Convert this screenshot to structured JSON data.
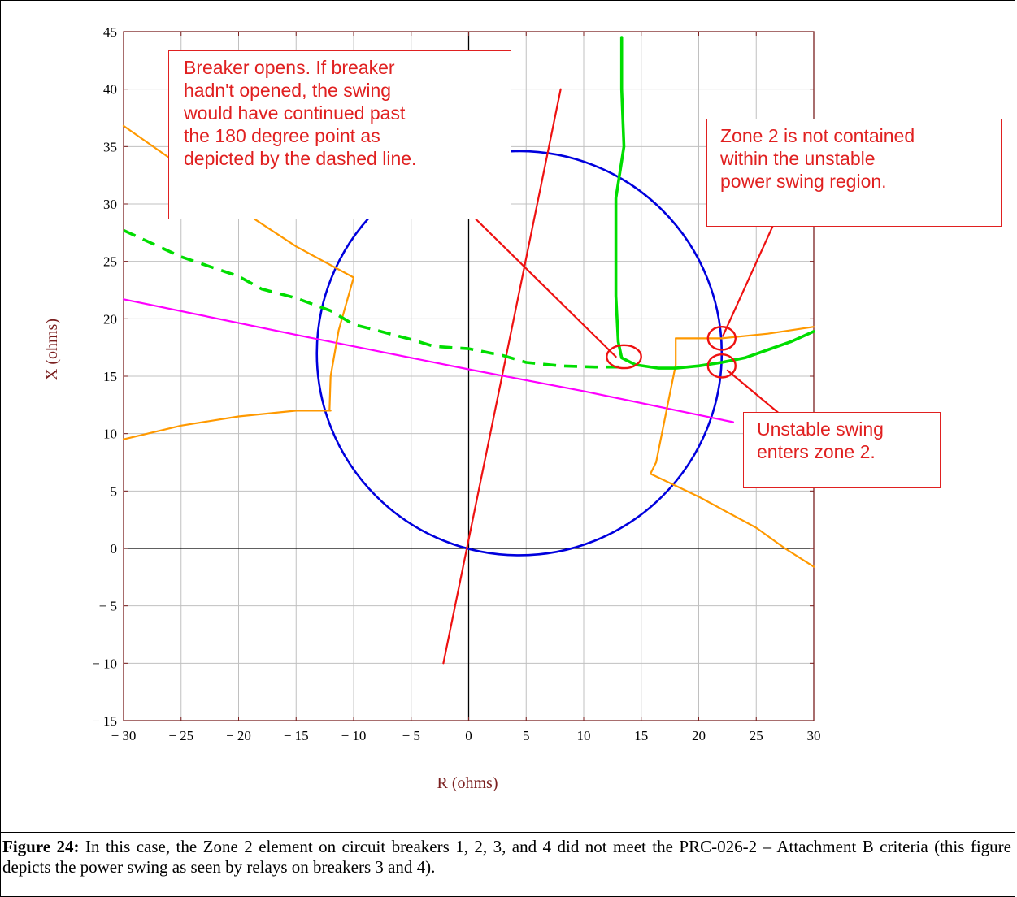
{
  "caption": {
    "label": "Figure 24:",
    "text": "In this case, the Zone 2 element on circuit breakers 1, 2, 3, and 4 did not meet the PRC-026-2 – Attachment B criteria (this figure depicts the power swing as seen by relays on breakers 3 and 4)."
  },
  "annotations": {
    "breaker_opens": "Breaker opens.  If breaker\nhadn't opened, the swing\nwould have continued past\nthe 180 degree point as\ndepicted by the dashed line.",
    "zone2_not_contained": "Zone 2 is not contained\nwithin the unstable\npower swing region.",
    "unstable_enters": "Unstable swing\nenters zone 2."
  },
  "colors": {
    "grid": "#c0c0c0",
    "frame": "#7a1f1f",
    "circle": "#0000dd",
    "zone": "#ff9900",
    "swing": "#00dd00",
    "line_red": "#ee1111",
    "line_magenta": "#ff00ff",
    "callout": "#e02020"
  },
  "chart_data": {
    "type": "line",
    "xlabel": "R (ohms)",
    "ylabel": "X (ohms)",
    "xlim": [
      -30,
      30
    ],
    "ylim": [
      -15,
      45
    ],
    "xticks": [
      -30,
      -25,
      -20,
      -15,
      -10,
      -5,
      0,
      5,
      10,
      15,
      20,
      25,
      30
    ],
    "yticks": [
      -15,
      -10,
      -5,
      0,
      5,
      10,
      15,
      20,
      25,
      30,
      35,
      40,
      45
    ],
    "xtick_labels": [
      "− 30",
      "− 25",
      "− 20",
      "− 15",
      "− 10",
      "− 5",
      "0",
      "5",
      "10",
      "15",
      "20",
      "25",
      "30"
    ],
    "ytick_labels": [
      "− 15",
      "− 10",
      "− 5",
      "0",
      "5",
      "10",
      "15",
      "20",
      "25",
      "30",
      "35",
      "40",
      "45"
    ],
    "grid": true,
    "circle": {
      "center": [
        4.4,
        17.0
      ],
      "radius": 17.6
    },
    "series": [
      {
        "kind": "line",
        "color": "#ee1111",
        "points": [
          [
            -2.2,
            -10
          ],
          [
            8,
            40
          ]
        ]
      },
      {
        "kind": "line",
        "color": "#ff00ff",
        "points": [
          [
            -30,
            21.7
          ],
          [
            -15,
            18.6
          ],
          [
            0,
            15.6
          ],
          [
            10,
            13.7
          ],
          [
            23,
            11
          ]
        ]
      },
      {
        "kind": "zone",
        "color": "#ff9900",
        "points": [
          [
            -30,
            36.8
          ],
          [
            -25,
            33.3
          ],
          [
            -20,
            29.6
          ],
          [
            -15,
            26.3
          ],
          [
            -10,
            23.6
          ],
          [
            -11.3,
            19
          ],
          [
            -12,
            15
          ],
          [
            -12.1,
            12
          ]
        ]
      },
      {
        "kind": "zone",
        "color": "#ff9900",
        "points": [
          [
            -30,
            9.5
          ],
          [
            -25,
            10.7
          ],
          [
            -20,
            11.5
          ],
          [
            -15,
            12
          ],
          [
            -12,
            12
          ]
        ]
      },
      {
        "kind": "zone",
        "color": "#ff9900",
        "points": [
          [
            18,
            18.3
          ],
          [
            22,
            18.3
          ],
          [
            26,
            18.7
          ],
          [
            30,
            19.3
          ]
        ]
      },
      {
        "kind": "zone",
        "color": "#ff9900",
        "points": [
          [
            18,
            18.3
          ],
          [
            18,
            16
          ],
          [
            17,
            11
          ],
          [
            16.3,
            7.5
          ],
          [
            15.8,
            6.5
          ]
        ]
      },
      {
        "kind": "zone",
        "color": "#ff9900",
        "points": [
          [
            15.8,
            6.5
          ],
          [
            20,
            4.5
          ],
          [
            25,
            1.8
          ],
          [
            27.5,
            0
          ],
          [
            30,
            -1.6
          ]
        ]
      },
      {
        "kind": "swing",
        "color": "#00dd00",
        "dashed": false,
        "points": [
          [
            13.3,
            44.5
          ],
          [
            13.3,
            40
          ],
          [
            13.5,
            35
          ],
          [
            12.8,
            30.5
          ],
          [
            12.8,
            26
          ],
          [
            12.8,
            22
          ],
          [
            13.0,
            18
          ],
          [
            13.3,
            16.6
          ],
          [
            14.5,
            16.0
          ],
          [
            16.5,
            15.7
          ],
          [
            18,
            15.7
          ],
          [
            20,
            15.9
          ],
          [
            22,
            16.2
          ],
          [
            24,
            16.6
          ],
          [
            26,
            17.3
          ],
          [
            28,
            18.0
          ],
          [
            30,
            18.9
          ]
        ]
      },
      {
        "kind": "swing",
        "color": "#00dd00",
        "dashed": true,
        "points": [
          [
            -30,
            27.7
          ],
          [
            -25,
            25.4
          ],
          [
            -20,
            23.7
          ],
          [
            -18,
            22.6
          ],
          [
            -15,
            21.8
          ],
          [
            -12,
            20.7
          ],
          [
            -10,
            19.5
          ],
          [
            -8,
            19.0
          ],
          [
            -5,
            18.2
          ],
          [
            -3,
            17.6
          ],
          [
            0,
            17.4
          ],
          [
            3,
            16.8
          ],
          [
            5,
            16.2
          ],
          [
            8,
            15.9
          ],
          [
            11,
            15.8
          ],
          [
            13.3,
            15.8
          ]
        ]
      },
      {
        "kind": "leader",
        "color": "#ee1111",
        "points": [
          [
            0.3,
            29
          ],
          [
            12.8,
            16.7
          ]
        ]
      },
      {
        "kind": "leader",
        "color": "#ee1111",
        "points": [
          [
            22.1,
            18.5
          ],
          [
            26.4,
            28
          ]
        ]
      },
      {
        "kind": "leader",
        "color": "#ee1111",
        "points": [
          [
            22.5,
            15.5
          ],
          [
            28.5,
            10.5
          ]
        ]
      },
      {
        "kind": "marker",
        "color": "#ee1111",
        "center": [
          13.5,
          16.7
        ],
        "rx": 1.5,
        "ry": 1.0
      },
      {
        "kind": "marker",
        "color": "#ee1111",
        "center": [
          22.0,
          18.3
        ],
        "rx": 1.2,
        "ry": 1.0
      },
      {
        "kind": "marker",
        "color": "#ee1111",
        "center": [
          22.0,
          15.9
        ],
        "rx": 1.2,
        "ry": 1.0
      }
    ]
  }
}
